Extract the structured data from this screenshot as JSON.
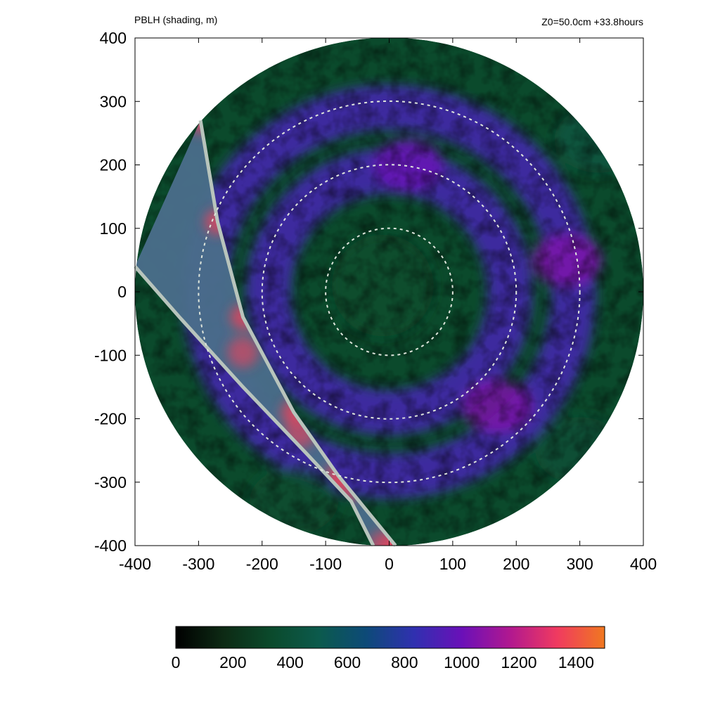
{
  "header": {
    "left_title": "PBLH (shading, m)",
    "right_title": "Z0=50.0cm  +33.8hours"
  },
  "chart_data": {
    "type": "heatmap",
    "title": "PBLH (shading, m)",
    "subtitle": "Z0=50.0cm  +33.8hours",
    "xlim": [
      -400,
      400
    ],
    "ylim": [
      -400,
      400
    ],
    "x_ticks": [
      "-400",
      "-300",
      "-200",
      "-100",
      "0",
      "100",
      "200",
      "300",
      "400"
    ],
    "y_ticks": [
      "400",
      "300",
      "200",
      "100",
      "0",
      "-100",
      "-200",
      "-300",
      "-400"
    ],
    "domain_radius": 400,
    "range_rings": [
      100,
      200,
      300
    ],
    "center": [
      0,
      0
    ],
    "masked_sector": {
      "outer_edge": [
        [
          -297,
          270
        ],
        [
          -270,
          110
        ],
        [
          -230,
          -40
        ],
        [
          -150,
          -190
        ],
        [
          -80,
          -290
        ],
        [
          10,
          -400
        ]
      ],
      "inner_edge": [
        [
          -400,
          40
        ],
        [
          -330,
          -40
        ],
        [
          -230,
          -150
        ],
        [
          -130,
          -255
        ],
        [
          -60,
          -330
        ],
        [
          -25,
          -400
        ]
      ],
      "peak_value_approx": 1350
    },
    "field_features": [
      {
        "type": "eye",
        "center": [
          -10,
          10
        ],
        "radius": 80,
        "value_approx": 350
      },
      {
        "type": "spiral_band",
        "r_mid": 190,
        "value_approx": 900
      },
      {
        "type": "spiral_band",
        "r_mid": 290,
        "value_approx": 900
      },
      {
        "type": "high_band",
        "center": [
          280,
          50
        ],
        "value_approx": 1050
      },
      {
        "type": "high_band",
        "center": [
          170,
          -180
        ],
        "value_approx": 1050
      },
      {
        "type": "high_band",
        "center": [
          30,
          200
        ],
        "value_approx": 1000
      },
      {
        "type": "low_region",
        "center": [
          -150,
          -330
        ],
        "value_approx": 350
      },
      {
        "type": "low_region",
        "center": [
          330,
          240
        ],
        "value_approx": 450
      },
      {
        "type": "low_region",
        "center": [
          300,
          -250
        ],
        "value_approx": 400
      }
    ],
    "colorbar": {
      "min": 0,
      "max": 1500,
      "ticks": [
        "0",
        "200",
        "400",
        "600",
        "800",
        "1000",
        "1200",
        "1400"
      ],
      "colors": [
        "#000000",
        "#0d2a14",
        "#0b4a2c",
        "#0c5a4c",
        "#0d4a78",
        "#3030b0",
        "#6a10b8",
        "#b01890",
        "#f03a60",
        "#f07820"
      ]
    },
    "grid": false,
    "legend": "colorbar-bottom"
  }
}
